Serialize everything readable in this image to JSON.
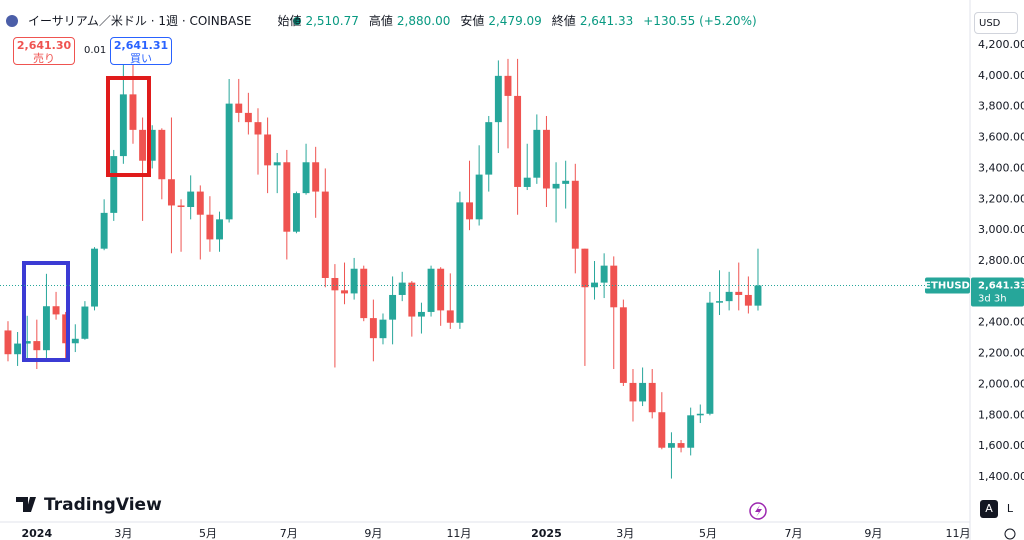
{
  "header": {
    "title": "イーサリアム／米ドル · 1週 · COINBASE",
    "open_label": "始値",
    "open": "2,510.77",
    "high_label": "高値",
    "high": "2,880.00",
    "low_label": "安値",
    "low": "2,479.09",
    "close_label": "終値",
    "close": "2,641.33",
    "change": "+130.55 (+5.20%)"
  },
  "trade": {
    "sell_price": "2,641.30",
    "sell_label": "売り",
    "spread": "0.01",
    "buy_price": "2,641.31",
    "buy_label": "買い"
  },
  "currency": "USD",
  "logo": "TradingView",
  "scale_buttons": [
    "A",
    "L"
  ],
  "chart_data": {
    "type": "candlestick",
    "symbol": "ETHUSD",
    "countdown": "3d 3h",
    "up_color": "#26a69a",
    "down_color": "#ef5350",
    "grid": false,
    "last_price": {
      "value": 2641.33,
      "label": "2,641.33"
    },
    "open": [
      2350,
      2196,
      2265,
      2281,
      2222,
      2507,
      2454,
      2267,
      2296,
      2505,
      2880,
      3112,
      3480,
      3880,
      3650,
      3450,
      3650,
      3330,
      3160,
      3150,
      3250,
      3100,
      2940,
      3070,
      3820,
      3760,
      3700,
      3620,
      3420,
      3440,
      2990,
      3240,
      3440,
      3250,
      2690,
      2610,
      2590,
      2750,
      2430,
      2300,
      2420,
      2580,
      2660,
      2440,
      2470,
      2750,
      2480,
      2400,
      3180,
      3070,
      3360,
      3700,
      4000,
      3870,
      3280,
      3340,
      3650,
      3270,
      3300,
      3320,
      2880,
      2630,
      2660,
      2770,
      2500,
      2010,
      1890,
      2010,
      1820,
      1590,
      1620,
      1590,
      1800,
      1810,
      2530,
      2540,
      2600,
      2580,
      2510.77
    ],
    "high": [
      2410,
      2340,
      2445,
      2420,
      2717,
      2600,
      2470,
      2390,
      2540,
      2890,
      3200,
      3520,
      4090,
      4090,
      3730,
      3680,
      3660,
      3730,
      3200,
      3355,
      3290,
      3220,
      3120,
      3980,
      3980,
      3890,
      3790,
      3730,
      3500,
      3520,
      3250,
      3560,
      3540,
      3400,
      2780,
      2790,
      2820,
      2770,
      2550,
      2460,
      2700,
      2730,
      2670,
      2530,
      2770,
      2760,
      2720,
      3250,
      3450,
      3550,
      3740,
      4100,
      4110,
      4110,
      3560,
      3750,
      3740,
      3440,
      3450,
      3430,
      2880,
      2800,
      2850,
      2830,
      2550,
      2100,
      2110,
      2100,
      1950,
      1690,
      1640,
      1850,
      1870,
      2600,
      2740,
      2730,
      2790,
      2700,
      2880
    ],
    "low": [
      2150,
      2120,
      2165,
      2100,
      2165,
      2420,
      2165,
      2210,
      2290,
      2480,
      2870,
      3060,
      3430,
      3560,
      3060,
      3400,
      3200,
      2850,
      2860,
      3070,
      2810,
      2860,
      2860,
      3050,
      3700,
      3620,
      3360,
      3240,
      3240,
      2810,
      2980,
      3230,
      3080,
      2630,
      2110,
      2520,
      2550,
      2410,
      2150,
      2260,
      2260,
      2540,
      2310,
      2330,
      2440,
      2380,
      2360,
      2360,
      3000,
      3030,
      3250,
      3500,
      3530,
      3100,
      3260,
      3300,
      3150,
      3050,
      3140,
      2720,
      2120,
      2550,
      2560,
      2100,
      1990,
      1760,
      1860,
      1780,
      1580,
      1390,
      1560,
      1540,
      1750,
      1800,
      2450,
      2480,
      2480,
      2460,
      2479.09
    ],
    "close": [
      2196,
      2265,
      2281,
      2222,
      2507,
      2454,
      2267,
      2296,
      2505,
      2880,
      3112,
      3480,
      3880,
      3650,
      3450,
      3650,
      3330,
      3160,
      3150,
      3250,
      3100,
      2940,
      3070,
      3820,
      3760,
      3700,
      3620,
      3420,
      3440,
      2990,
      3240,
      3440,
      3250,
      2690,
      2610,
      2590,
      2750,
      2430,
      2300,
      2420,
      2580,
      2660,
      2440,
      2470,
      2750,
      2480,
      2400,
      3180,
      3070,
      3360,
      3700,
      4000,
      3870,
      3280,
      3340,
      3650,
      3270,
      3300,
      3320,
      2880,
      2630,
      2660,
      2770,
      2500,
      2010,
      1890,
      2010,
      1820,
      1590,
      1620,
      1590,
      1800,
      1810,
      2530,
      2540,
      2600,
      2580,
      2510.77,
      2641.33
    ],
    "xlim": [
      -0.83,
      100.05
    ],
    "xticks": [
      {
        "value": 3,
        "label": "2024"
      },
      {
        "value": 12,
        "label": "3月"
      },
      {
        "value": 20.8,
        "label": "5月"
      },
      {
        "value": 29.2,
        "label": "7月"
      },
      {
        "value": 38,
        "label": "9月"
      },
      {
        "value": 46.9,
        "label": "11月"
      },
      {
        "value": 56,
        "label": "2025"
      },
      {
        "value": 64.2,
        "label": "3月"
      },
      {
        "value": 72.8,
        "label": "5月"
      },
      {
        "value": 81.7,
        "label": "7月"
      },
      {
        "value": 90,
        "label": "9月"
      },
      {
        "value": 98.8,
        "label": "11月"
      }
    ],
    "ylim": [
      1108.6,
      4491.6
    ],
    "yticks": [
      {
        "value": 1400,
        "label": "1,400.00"
      },
      {
        "value": 1600,
        "label": "1,600.00"
      },
      {
        "value": 1800,
        "label": "1,800.00"
      },
      {
        "value": 2000,
        "label": "2,000.00"
      },
      {
        "value": 2200,
        "label": "2,200.00"
      },
      {
        "value": 2400,
        "label": "2,400.00"
      },
      {
        "value": 2600,
        "label": "2,600.00"
      },
      {
        "value": 2800,
        "label": "2,800.00"
      },
      {
        "value": 3000,
        "label": "3,000.00"
      },
      {
        "value": 3200,
        "label": "3,200.00"
      },
      {
        "value": 3400,
        "label": "3,400.00"
      },
      {
        "value": 3600,
        "label": "3,600.00"
      },
      {
        "value": 3800,
        "label": "3,800.00"
      },
      {
        "value": 4000,
        "label": "4,000.00"
      },
      {
        "value": 4200,
        "label": "4,200.00"
      }
    ]
  }
}
